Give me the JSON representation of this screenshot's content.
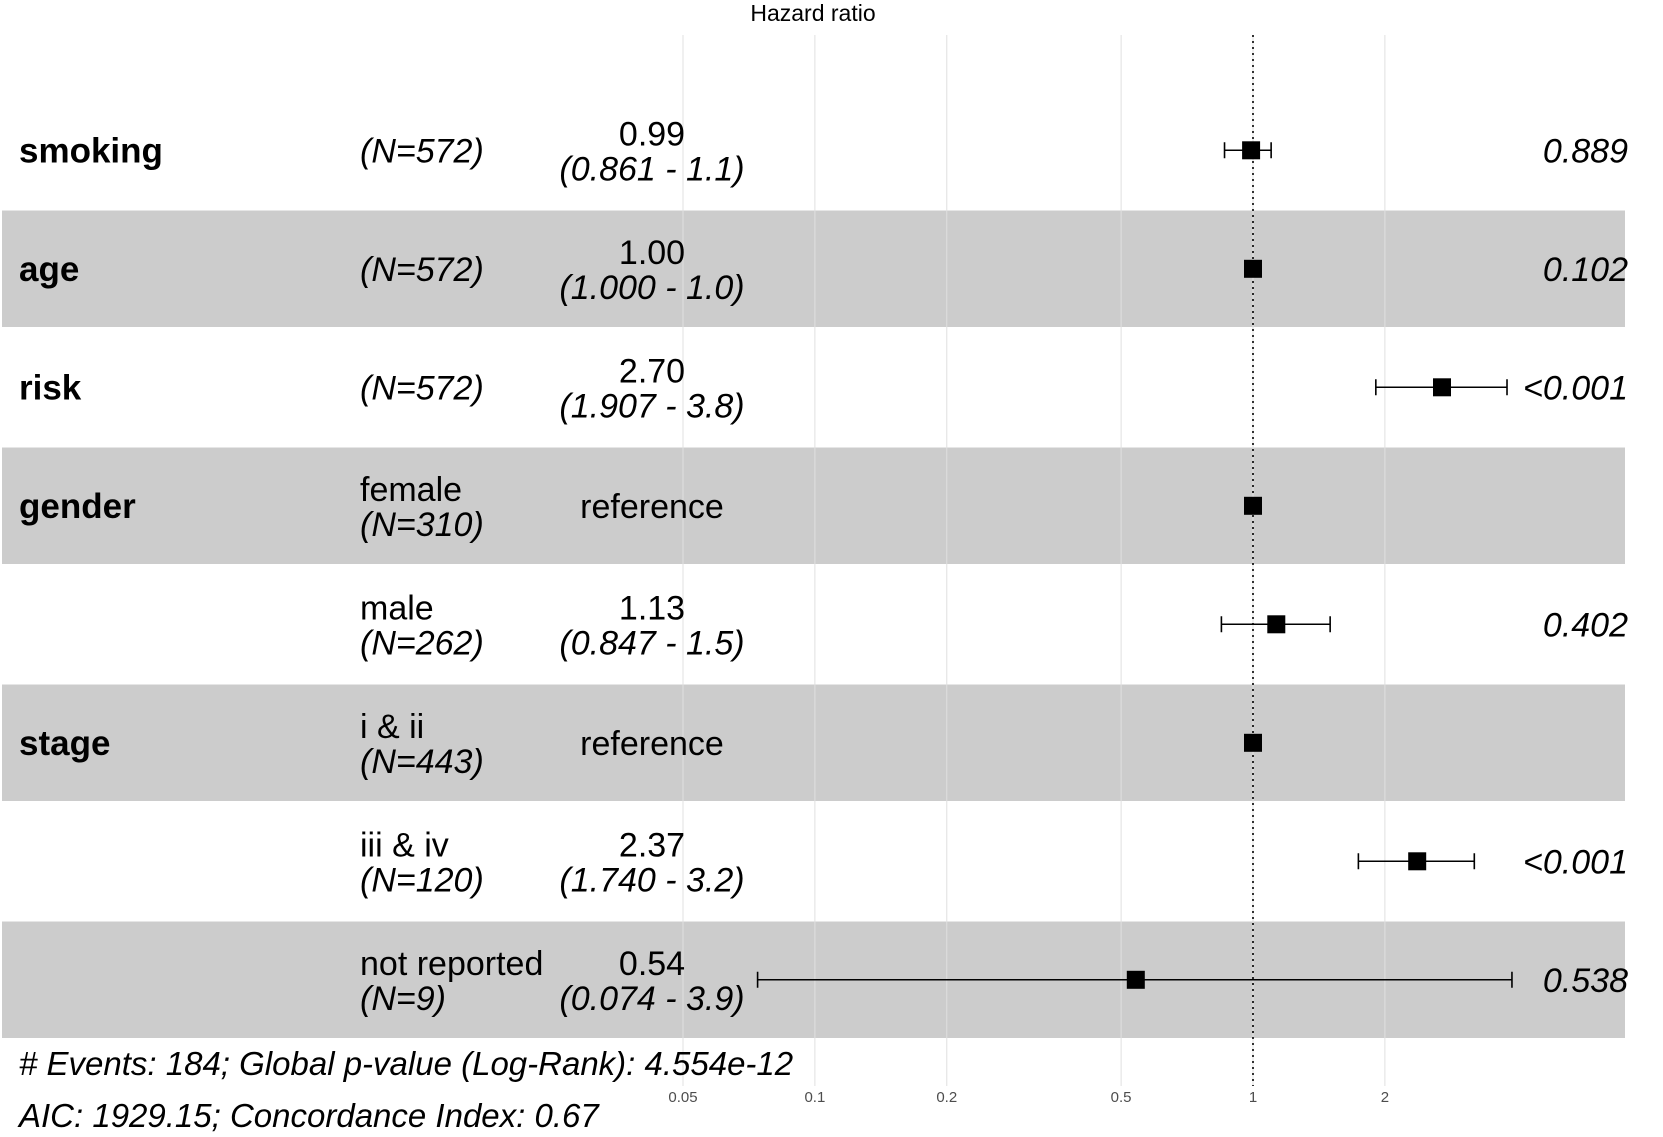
{
  "chart_data": {
    "type": "forest",
    "title": "Hazard ratio",
    "x_scale": "log",
    "x_ticks": [
      0.05,
      0.1,
      0.2,
      0.5,
      1,
      2
    ],
    "x_tick_labels": [
      "0.05",
      "0.1",
      "0.2",
      "0.5",
      "1",
      "2"
    ],
    "xlim": [
      0.05,
      4.0
    ],
    "reference_line": 1,
    "rows": [
      {
        "variable": "smoking",
        "level": "",
        "n": "(N=572)",
        "estimate": 0.99,
        "lower": 0.861,
        "upper": 1.1,
        "hr_text": "0.99",
        "ci_text": "(0.861 - 1.1)",
        "p": "0.889",
        "shaded": false
      },
      {
        "variable": "age",
        "level": "",
        "n": "(N=572)",
        "estimate": 1.0,
        "lower": 1.0,
        "upper": 1.0,
        "hr_text": "1.00",
        "ci_text": "(1.000 - 1.0)",
        "p": "0.102",
        "shaded": true
      },
      {
        "variable": "risk",
        "level": "",
        "n": "(N=572)",
        "estimate": 2.7,
        "lower": 1.907,
        "upper": 3.8,
        "hr_text": "2.70",
        "ci_text": "(1.907 - 3.8)",
        "p": "<0.001",
        "shaded": false
      },
      {
        "variable": "gender",
        "level": "female",
        "n": "(N=310)",
        "estimate": 1.0,
        "lower": 1.0,
        "upper": 1.0,
        "hr_text": "reference",
        "ci_text": "",
        "p": "",
        "shaded": true,
        "reference": true
      },
      {
        "variable": "",
        "level": "male",
        "n": "(N=262)",
        "estimate": 1.13,
        "lower": 0.847,
        "upper": 1.5,
        "hr_text": "1.13",
        "ci_text": "(0.847 - 1.5)",
        "p": "0.402",
        "shaded": false
      },
      {
        "variable": "stage",
        "level": "i & ii",
        "n": "(N=443)",
        "estimate": 1.0,
        "lower": 1.0,
        "upper": 1.0,
        "hr_text": "reference",
        "ci_text": "",
        "p": "",
        "shaded": true,
        "reference": true
      },
      {
        "variable": "",
        "level": "iii & iv",
        "n": "(N=120)",
        "estimate": 2.37,
        "lower": 1.74,
        "upper": 3.2,
        "hr_text": "2.37",
        "ci_text": "(1.740 - 3.2)",
        "p": "<0.001",
        "shaded": false
      },
      {
        "variable": "",
        "level": "not reported",
        "n": "(N=9)",
        "estimate": 0.54,
        "lower": 0.074,
        "upper": 3.9,
        "hr_text": "0.54",
        "ci_text": "(0.074 - 3.9)",
        "p": "0.538",
        "shaded": true
      }
    ],
    "footer": [
      "# Events: 184; Global p-value (Log-Rank): 4.554e-12",
      "AIC: 1929.15; Concordance Index: 0.67"
    ]
  },
  "colors": {
    "shade": "#cccccc",
    "grid": "#e0e0e0",
    "point": "#000000"
  }
}
